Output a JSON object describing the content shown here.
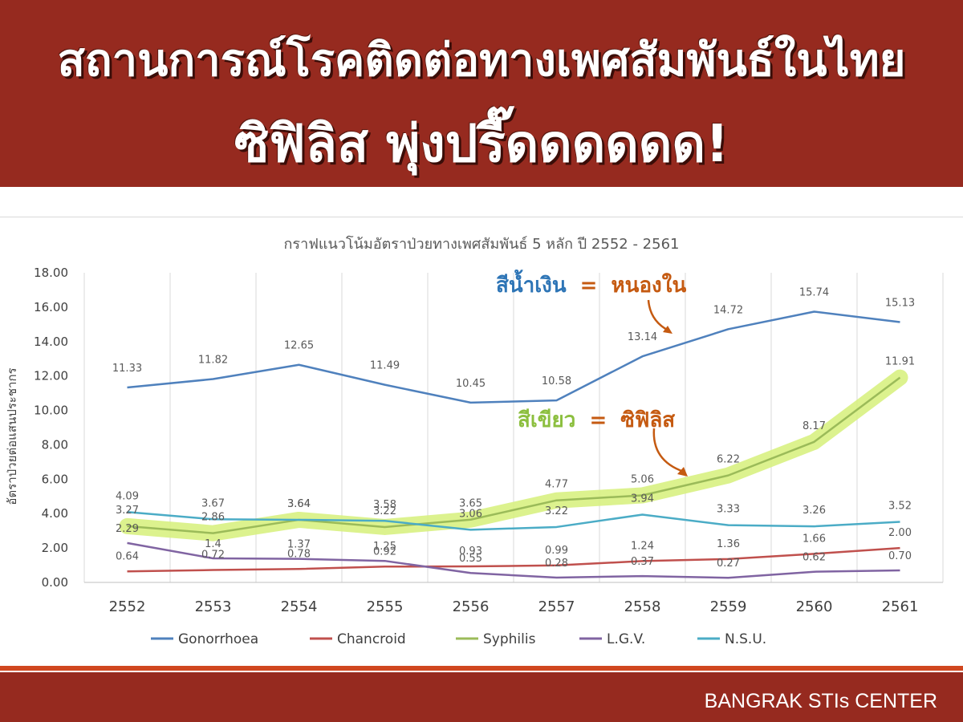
{
  "header": {
    "line1": "สถานการณ์โรคติดต่อทางเพศสัมพันธ์ในไทย",
    "line2": "ซิฟิลิส พุ่งปรี๊ดดดดดด!"
  },
  "footer": {
    "text": "BANGRAK STIs CENTER"
  },
  "annotations": {
    "blue_label": "สีน้ำเงิน",
    "blue_eq": "=",
    "blue_meaning": "หนองใน",
    "green_label": "สีเขียว",
    "green_eq": "=",
    "green_meaning": "ซิฟิลิส"
  },
  "chart_data": {
    "type": "line",
    "title": "กราฟแนวโน้มอัตราป่วยทางเพศสัมพันธ์ 5 หลัก ปี 2552 - 2561",
    "ylabel": "อัตราป่วยต่อแสนประชากร",
    "xlabel": "",
    "categories": [
      "2552",
      "2553",
      "2554",
      "2555",
      "2556",
      "2557",
      "2558",
      "2559",
      "2560",
      "2561"
    ],
    "ylim": [
      0,
      18
    ],
    "yticks": [
      "0.00",
      "2.00",
      "4.00",
      "6.00",
      "8.00",
      "10.00",
      "12.00",
      "14.00",
      "16.00",
      "18.00"
    ],
    "grid": "vertical",
    "legend": "bottom",
    "series": [
      {
        "name": "Gonorrhoea",
        "color": "#4f81bd",
        "values": [
          11.33,
          11.82,
          12.65,
          11.49,
          10.45,
          10.58,
          13.14,
          14.72,
          15.74,
          15.13
        ],
        "labels": [
          "11.33",
          "11.82",
          "12.65",
          "11.49",
          "10.45",
          "10.58",
          "13.14",
          "14.72",
          "15.74",
          "15.13"
        ]
      },
      {
        "name": "Chancroid",
        "color": "#c0504d",
        "values": [
          0.64,
          0.72,
          0.78,
          0.92,
          0.93,
          0.99,
          1.24,
          1.36,
          1.66,
          2.0
        ],
        "labels": [
          "0.64",
          "0.72",
          "0.78",
          "0.92",
          "0.93",
          "0.99",
          "1.24",
          "1.36",
          "1.66",
          "2.00"
        ]
      },
      {
        "name": "Syphilis",
        "color": "#9bbb59",
        "values": [
          3.27,
          2.86,
          3.64,
          3.22,
          3.65,
          4.77,
          5.06,
          6.22,
          8.17,
          11.91
        ],
        "labels": [
          "3.27",
          "2.86",
          "3.64",
          "3.22",
          "3.65",
          "4.77",
          "5.06",
          "6.22",
          "8.17",
          "11.91"
        ]
      },
      {
        "name": "L.G.V.",
        "color": "#8064a2",
        "values": [
          2.29,
          1.4,
          1.37,
          1.25,
          0.55,
          0.28,
          0.37,
          0.27,
          0.62,
          0.7
        ],
        "labels": [
          "2.29",
          "1.4",
          "1.37",
          "1.25",
          "0.55",
          "0.28",
          "0.37",
          "0.27",
          "0.62",
          "0.70"
        ]
      },
      {
        "name": "N.S.U.",
        "color": "#4bacc6",
        "values": [
          4.09,
          3.67,
          3.64,
          3.58,
          3.06,
          3.22,
          3.94,
          3.33,
          3.26,
          3.52
        ],
        "labels": [
          "4.09",
          "3.67",
          "3.64",
          "3.58",
          "3.06",
          "3.22",
          "3.94",
          "3.33",
          "3.26",
          "3.52"
        ]
      }
    ]
  },
  "colors": {
    "banner": "#962a1f",
    "stripe": "#d0471f",
    "highlight": "#d6f07a",
    "blue_annotation": "#2e75b6",
    "green_annotation": "#8cbf3f",
    "red_annotation": "#c55a11"
  }
}
